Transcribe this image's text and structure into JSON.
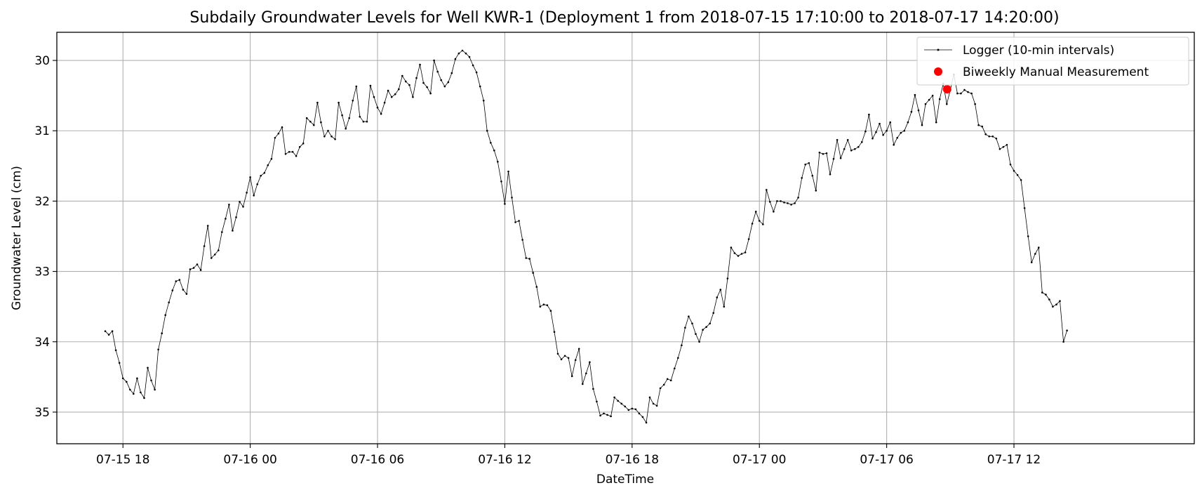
{
  "chart_data": {
    "type": "line",
    "title": "Subdaily Groundwater Levels for Well KWR-1 (Deployment 1 from 2018-07-15 17:10:00 to 2018-07-17 14:20:00)",
    "xlabel": "DateTime",
    "ylabel": "Groundwater Level (cm)",
    "y_inverted": true,
    "ylim": [
      35.45,
      29.6
    ],
    "xlim": [
      "2018-07-15 14:53:00",
      "2018-07-17 20:30:00"
    ],
    "grid": true,
    "legend_position": "top-right",
    "x_ticks": [
      {
        "value": "2018-07-15 18:00:00",
        "label": "07-15 18"
      },
      {
        "value": "2018-07-16 00:00:00",
        "label": "07-16 00"
      },
      {
        "value": "2018-07-16 06:00:00",
        "label": "07-16 06"
      },
      {
        "value": "2018-07-16 12:00:00",
        "label": "07-16 12"
      },
      {
        "value": "2018-07-16 18:00:00",
        "label": "07-16 18"
      },
      {
        "value": "2018-07-17 00:00:00",
        "label": "07-17 00"
      },
      {
        "value": "2018-07-17 06:00:00",
        "label": "07-17 06"
      },
      {
        "value": "2018-07-17 12:00:00",
        "label": "07-17 12"
      }
    ],
    "y_ticks": [
      30,
      31,
      32,
      33,
      34,
      35
    ],
    "series": [
      {
        "name": "Logger (10-min intervals)",
        "color": "#000000",
        "marker": "point",
        "interval_minutes": 10,
        "x_start": "2018-07-15 17:10:00",
        "x_end": "2018-07-17 14:20:00",
        "values": [
          33.85,
          33.9,
          33.85,
          34.12,
          34.3,
          34.52,
          34.57,
          34.68,
          34.74,
          34.52,
          34.72,
          34.8,
          34.37,
          34.55,
          34.68,
          34.11,
          33.88,
          33.62,
          33.44,
          33.27,
          33.14,
          33.12,
          33.26,
          33.32,
          32.97,
          32.95,
          32.9,
          32.98,
          32.64,
          32.35,
          32.81,
          32.76,
          32.7,
          32.44,
          32.25,
          32.05,
          32.42,
          32.23,
          32.01,
          32.08,
          31.88,
          31.66,
          31.92,
          31.76,
          31.64,
          31.6,
          31.49,
          31.4,
          31.1,
          31.04,
          30.95,
          31.33,
          31.3,
          31.3,
          31.36,
          31.23,
          31.18,
          30.82,
          30.87,
          30.92,
          30.6,
          30.88,
          31.08,
          31.0,
          31.08,
          31.12,
          30.6,
          30.78,
          30.97,
          30.82,
          30.57,
          30.37,
          30.8,
          30.87,
          30.87,
          30.36,
          30.52,
          30.67,
          30.76,
          30.6,
          30.43,
          30.52,
          30.48,
          30.41,
          30.22,
          30.3,
          30.35,
          30.52,
          30.25,
          30.06,
          30.32,
          30.38,
          30.47,
          30.0,
          30.16,
          30.28,
          30.37,
          30.31,
          30.18,
          29.98,
          29.9,
          29.86,
          29.9,
          29.95,
          30.07,
          30.17,
          30.37,
          30.57,
          31.0,
          31.17,
          31.28,
          31.44,
          31.72,
          32.04,
          31.58,
          31.95,
          32.3,
          32.28,
          32.55,
          32.81,
          32.82,
          33.02,
          33.22,
          33.5,
          33.47,
          33.48,
          33.56,
          33.86,
          34.17,
          34.25,
          34.2,
          34.23,
          34.49,
          34.26,
          34.1,
          34.6,
          34.45,
          34.29,
          34.67,
          34.85,
          35.05,
          35.02,
          35.04,
          35.06,
          34.79,
          34.84,
          34.88,
          34.92,
          34.97,
          34.95,
          34.96,
          35.02,
          35.07,
          35.15,
          34.79,
          34.88,
          34.91,
          34.66,
          34.61,
          34.53,
          34.55,
          34.38,
          34.23,
          34.05,
          33.8,
          33.64,
          33.74,
          33.89,
          34.0,
          33.83,
          33.79,
          33.74,
          33.59,
          33.37,
          33.26,
          33.5,
          33.1,
          32.66,
          32.74,
          32.78,
          32.75,
          32.73,
          32.54,
          32.32,
          32.15,
          32.28,
          32.33,
          31.84,
          32.01,
          32.15,
          32.0,
          32.0,
          32.02,
          32.03,
          32.05,
          32.03,
          31.95,
          31.67,
          31.48,
          31.46,
          31.64,
          31.85,
          31.31,
          31.33,
          31.32,
          31.62,
          31.4,
          31.13,
          31.39,
          31.26,
          31.13,
          31.28,
          31.26,
          31.23,
          31.16,
          31.01,
          30.77,
          31.11,
          31.02,
          30.9,
          31.06,
          31.0,
          30.88,
          31.2,
          31.1,
          31.03,
          31.0,
          30.88,
          30.73,
          30.49,
          30.71,
          30.92,
          30.62,
          30.56,
          30.5,
          30.88,
          30.55,
          30.33,
          30.62,
          30.42,
          30.2,
          30.47,
          30.47,
          30.42,
          30.45,
          30.47,
          30.62,
          30.92,
          30.94,
          31.05,
          31.08,
          31.08,
          31.11,
          31.26,
          31.23,
          31.2,
          31.48,
          31.57,
          31.63,
          31.7,
          32.1,
          32.5,
          32.87,
          32.75,
          32.66,
          33.3,
          33.33,
          33.4,
          33.5,
          33.47,
          33.42,
          34.0,
          33.84
        ]
      },
      {
        "name": "Biweekly Manual Measurement",
        "color": "#ff0000",
        "marker": "circle",
        "points": [
          {
            "x": "2018-07-17 08:51:00",
            "y": 30.41
          }
        ]
      }
    ]
  }
}
